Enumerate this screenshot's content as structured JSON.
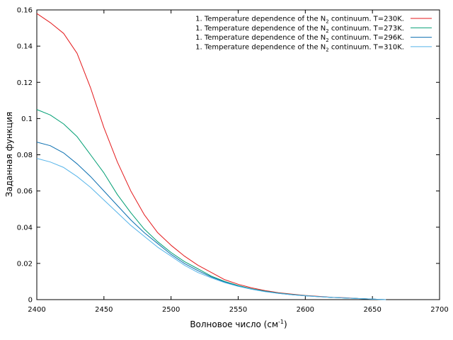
{
  "chart_data": {
    "type": "line",
    "xlabel_main": "Волновое число (см",
    "xlabel_sup": "-1",
    "xlabel_end": ")",
    "ylabel": "Заданная функция",
    "xlim": [
      2400,
      2700
    ],
    "ylim": [
      0,
      0.16
    ],
    "x_ticks": [
      2400,
      2450,
      2500,
      2550,
      2600,
      2650,
      2700
    ],
    "y_ticks": [
      0,
      0.02,
      0.04,
      0.06,
      0.08,
      0.1,
      0.12,
      0.14,
      0.16
    ],
    "x_tick_labels": [
      "2400",
      "2450",
      "2500",
      "2550",
      "2600",
      "2650",
      "2700"
    ],
    "y_tick_labels": [
      "0",
      "0.02",
      "0.04",
      "0.06",
      "0.08",
      "0.1",
      "0.12",
      "0.14",
      "0.16"
    ],
    "grid": false,
    "legend_position": "top-right",
    "x": [
      2400,
      2410,
      2420,
      2430,
      2440,
      2450,
      2460,
      2470,
      2480,
      2490,
      2500,
      2510,
      2520,
      2530,
      2540,
      2550,
      2560,
      2570,
      2580,
      2590,
      2600,
      2610,
      2620,
      2630,
      2640,
      2650,
      2660
    ],
    "series": [
      {
        "name_pre": "1. Temperature dependence of the N",
        "name_sub": "2",
        "name_post": " continuum. T=230K.",
        "color": "#e41a1c",
        "values": [
          0.158,
          0.153,
          0.147,
          0.136,
          0.117,
          0.095,
          0.076,
          0.06,
          0.047,
          0.037,
          0.03,
          0.024,
          0.019,
          0.015,
          0.011,
          0.0085,
          0.0065,
          0.005,
          0.0038,
          0.003,
          0.0023,
          0.0018,
          0.0013,
          0.001,
          0.0006,
          0.0003,
          0.0
        ]
      },
      {
        "name_pre": "1. Temperature dependence of the N",
        "name_sub": "2",
        "name_post": " continuum. T=273K.",
        "color": "#009e73",
        "values": [
          0.105,
          0.102,
          0.097,
          0.09,
          0.08,
          0.07,
          0.058,
          0.048,
          0.039,
          0.032,
          0.026,
          0.021,
          0.017,
          0.013,
          0.01,
          0.0078,
          0.006,
          0.0047,
          0.0036,
          0.0028,
          0.0022,
          0.0017,
          0.0012,
          0.0009,
          0.0006,
          0.0003,
          0.0
        ]
      },
      {
        "name_pre": "1. Temperature dependence of the N",
        "name_sub": "2",
        "name_post": " continuum. T=296K.",
        "color": "#0b6fb0",
        "values": [
          0.087,
          0.085,
          0.081,
          0.075,
          0.068,
          0.06,
          0.052,
          0.044,
          0.037,
          0.031,
          0.025,
          0.02,
          0.016,
          0.0125,
          0.0097,
          0.0075,
          0.0058,
          0.0045,
          0.0035,
          0.0027,
          0.0021,
          0.0016,
          0.0012,
          0.0009,
          0.0006,
          0.0003,
          0.0
        ]
      },
      {
        "name_pre": "1. Temperature dependence of the N",
        "name_sub": "2",
        "name_post": " continuum. T=310K.",
        "color": "#56b4e9",
        "values": [
          0.078,
          0.076,
          0.073,
          0.068,
          0.062,
          0.055,
          0.048,
          0.041,
          0.035,
          0.029,
          0.024,
          0.019,
          0.015,
          0.012,
          0.0094,
          0.0073,
          0.0057,
          0.0044,
          0.0034,
          0.0027,
          0.0021,
          0.0016,
          0.0012,
          0.0009,
          0.0006,
          0.0003,
          0.0
        ]
      }
    ]
  }
}
